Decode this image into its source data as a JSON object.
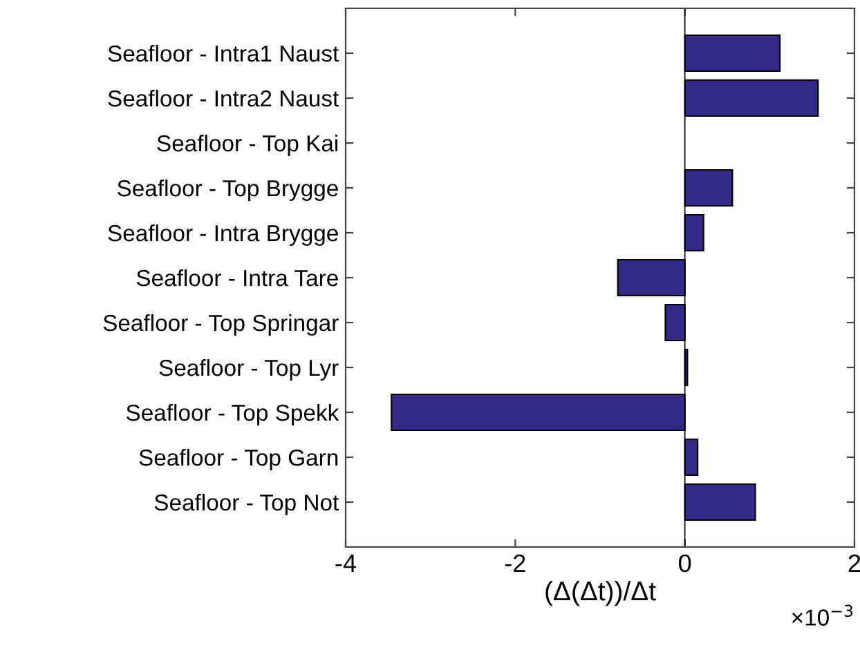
{
  "chart_data": {
    "type": "bar",
    "orientation": "horizontal",
    "xlabel": "(Δ(Δt))/Δt",
    "categories": [
      "Seafloor - Intra1 Naust",
      "Seafloor - Intra2 Naust",
      "Seafloor - Top Kai",
      "Seafloor - Top Brygge",
      "Seafloor - Intra Brygge",
      "Seafloor - Intra Tare",
      "Seafloor - Top Springar",
      "Seafloor - Top Lyr",
      "Seafloor - Top Spekk",
      "Seafloor - Top Garn",
      "Seafloor - Top Not"
    ],
    "values": [
      1.12,
      1.57,
      null,
      0.56,
      0.22,
      -0.79,
      -0.23,
      0.03,
      -3.46,
      0.15,
      0.83
    ],
    "color": "#352a87",
    "xlim": [
      -4,
      2
    ],
    "xticks": [
      -4,
      -2,
      0,
      2
    ],
    "annotations": [
      "×10$^{−3}$"
    ],
    "ref_lines": [
      {
        "axis": "x",
        "value": 0,
        "color": "#000000"
      }
    ],
    "grid": false,
    "legend": false
  }
}
